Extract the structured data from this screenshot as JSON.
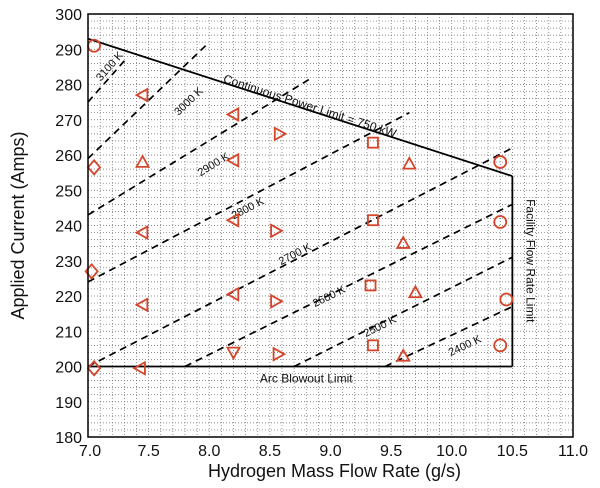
{
  "chart_data": {
    "type": "scatter",
    "xlabel": "Hydrogen Mass Flow Rate  (g/s)",
    "ylabel": "Applied Current  (Amps)",
    "xlim": [
      7.0,
      11.0
    ],
    "ylim": [
      180,
      300
    ],
    "x_ticks": [
      "7.0",
      "7.5",
      "8.0",
      "8.5",
      "9.0",
      "9.5",
      "10.0",
      "10.5",
      "11.0"
    ],
    "y_ticks": [
      "180",
      "190",
      "200",
      "210",
      "220",
      "230",
      "240",
      "250",
      "260",
      "270",
      "280",
      "290",
      "300"
    ],
    "grid": true,
    "markers": {
      "circle": [
        [
          7.05,
          291
        ],
        [
          10.4,
          258
        ],
        [
          10.4,
          241
        ],
        [
          10.45,
          219
        ],
        [
          10.4,
          206
        ]
      ],
      "diamond": [
        [
          7.05,
          256.5
        ],
        [
          7.03,
          227
        ],
        [
          7.05,
          199.5
        ]
      ],
      "triangle_up": [
        [
          7.45,
          258
        ],
        [
          9.65,
          257.5
        ],
        [
          9.6,
          235
        ],
        [
          9.7,
          221
        ],
        [
          9.6,
          203
        ]
      ],
      "triangle_left": [
        [
          7.45,
          277
        ],
        [
          7.45,
          238
        ],
        [
          7.45,
          217.5
        ],
        [
          7.43,
          199.5
        ],
        [
          8.2,
          271.5
        ],
        [
          8.2,
          258.5
        ],
        [
          8.2,
          241.5
        ],
        [
          8.2,
          220.5
        ]
      ],
      "triangle_right": [
        [
          8.58,
          266
        ],
        [
          8.55,
          238.5
        ],
        [
          8.55,
          218.5
        ],
        [
          8.57,
          203.5
        ]
      ],
      "triangle_down": [
        [
          8.2,
          204
        ]
      ],
      "square": [
        [
          9.35,
          263.5
        ],
        [
          9.35,
          241.5
        ],
        [
          9.33,
          223
        ],
        [
          9.35,
          206
        ]
      ]
    },
    "limits": {
      "power": {
        "label": "Continuous Power Limit = 750 kW",
        "points": [
          [
            7.0,
            293
          ],
          [
            10.5,
            254
          ]
        ]
      },
      "facility": {
        "label": "Facility Flow Rate Limit",
        "points": [
          [
            10.5,
            254
          ],
          [
            10.5,
            200
          ]
        ]
      },
      "blowout": {
        "label": "Arc Blowout Limit",
        "points": [
          [
            7.0,
            200
          ],
          [
            10.5,
            200
          ]
        ]
      }
    },
    "isotherms": [
      {
        "label": "3100 K",
        "points": [
          [
            7.0,
            275
          ],
          [
            7.32,
            287.5
          ]
        ],
        "label_at": [
          7.2,
          284.5
        ]
      },
      {
        "label": "3000 K",
        "points": [
          [
            7.0,
            259
          ],
          [
            8.0,
            292
          ]
        ],
        "label_at": [
          7.85,
          274.5
        ]
      },
      {
        "label": "2900 K",
        "points": [
          [
            7.0,
            243
          ],
          [
            8.85,
            282
          ]
        ],
        "label_at": [
          8.05,
          256.5
        ]
      },
      {
        "label": "2800 K",
        "points": [
          [
            7.0,
            224
          ],
          [
            9.65,
            272
          ]
        ],
        "label_at": [
          8.33,
          244
        ]
      },
      {
        "label": "2700 K",
        "points": [
          [
            7.0,
            200
          ],
          [
            10.5,
            262
          ]
        ],
        "label_at": [
          8.72,
          231
        ]
      },
      {
        "label": "2600 K",
        "points": [
          [
            7.8,
            200
          ],
          [
            10.5,
            246
          ]
        ],
        "label_at": [
          9.0,
          219
        ]
      },
      {
        "label": "2500 K",
        "points": [
          [
            8.7,
            200
          ],
          [
            10.5,
            231
          ]
        ],
        "label_at": [
          9.42,
          210.5
        ]
      },
      {
        "label": "2400 K",
        "points": [
          [
            9.45,
            200
          ],
          [
            10.5,
            217
          ]
        ],
        "label_at": [
          10.12,
          205
        ]
      }
    ]
  }
}
